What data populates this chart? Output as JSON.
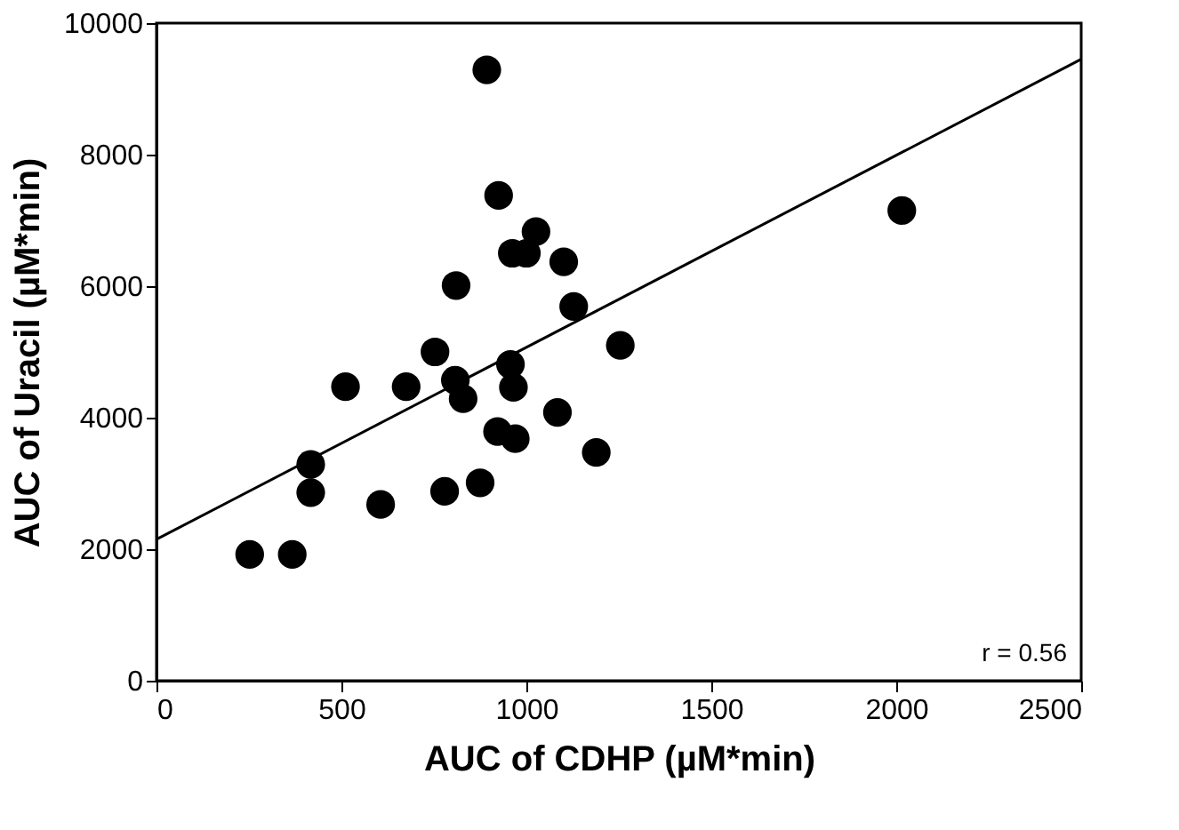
{
  "chart_data": {
    "type": "scatter",
    "xlabel": "AUC of CDHP (µM*min)",
    "ylabel": "AUC of Uracil (µM*min)",
    "xlim": [
      0,
      2500
    ],
    "xticks": [
      0,
      500,
      1000,
      1500,
      2000,
      2500
    ],
    "ylim": [
      0,
      10000
    ],
    "yticks": [
      0,
      2000,
      4000,
      6000,
      8000,
      10000
    ],
    "grid": false,
    "marker": "circle",
    "annotations": [
      "r = 0.56"
    ],
    "series": [
      {
        "color": "#000000",
        "x": [
          252,
          367,
          417,
          417,
          511,
          606,
          675,
          753,
          779,
          810,
          808,
          829,
          875,
          893,
          925,
          922,
          970,
          957,
          965,
          962,
          1000,
          1026,
          1084,
          1101,
          1128,
          1189,
          1254,
          2015
        ],
        "values": [
          1920,
          1920,
          3290,
          2860,
          4470,
          2680,
          4470,
          5000,
          2880,
          6010,
          4570,
          4290,
          3010,
          9290,
          7380,
          3790,
          3680,
          4810,
          4460,
          6500,
          6500,
          6830,
          4080,
          6370,
          5690,
          3470,
          5100,
          7150
        ]
      },
      {
        "type": "line",
        "color": "#000000",
        "marker": "none",
        "line_style": "solid",
        "x": [
          0,
          2500
        ],
        "values": [
          2150,
          9450
        ]
      }
    ]
  }
}
